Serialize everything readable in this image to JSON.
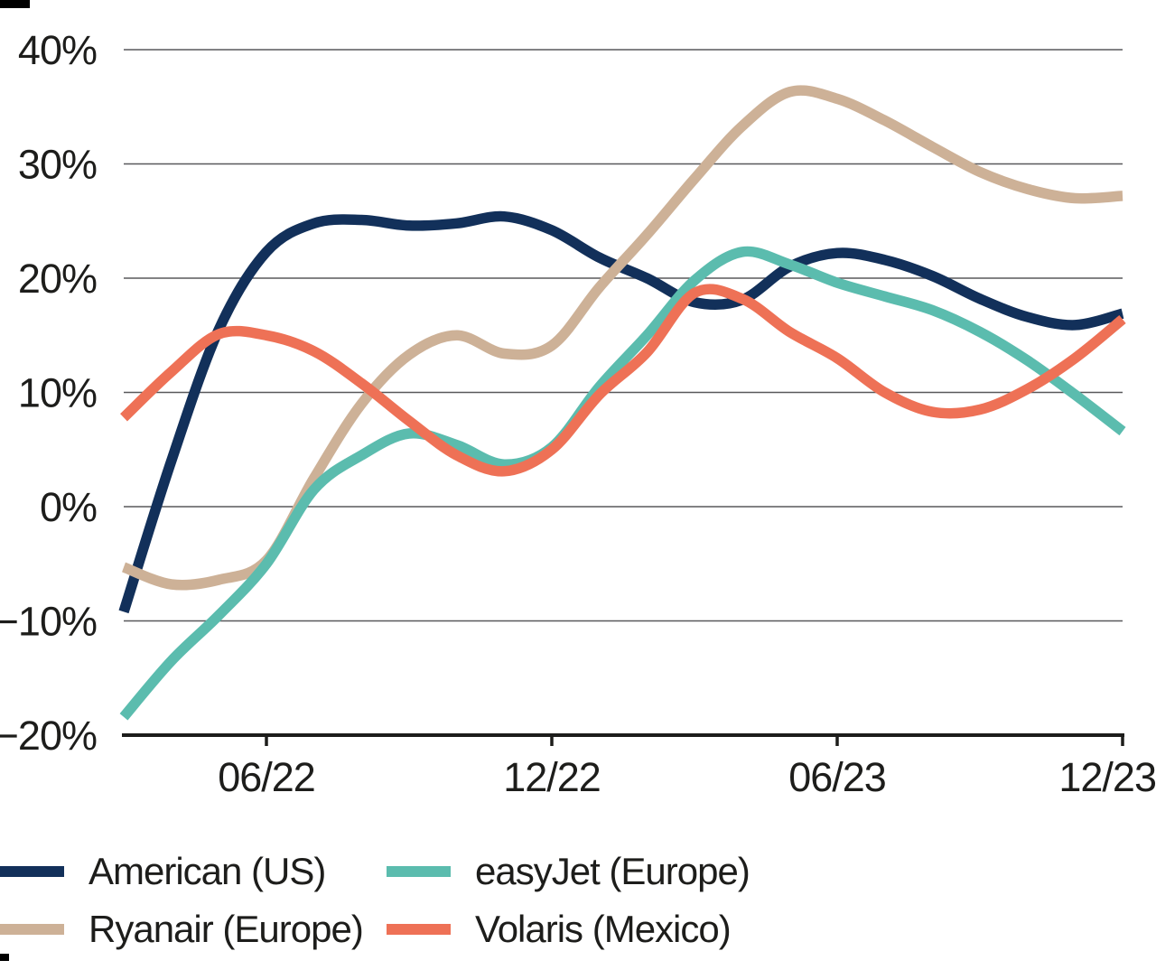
{
  "chart_data": {
    "type": "line",
    "grid": "horizontal",
    "legend_position": "bottom-left",
    "axis_color": "#1d1d1b",
    "grid_color": "#58585b",
    "ylim": [
      -20,
      40
    ],
    "y_ticks": [
      {
        "value": 40,
        "label": "40%"
      },
      {
        "value": 30,
        "label": "30%"
      },
      {
        "value": 20,
        "label": "20%"
      },
      {
        "value": 10,
        "label": "10%"
      },
      {
        "value": 0,
        "label": "0%"
      },
      {
        "value": -10,
        "label": "−10%"
      },
      {
        "value": -20,
        "label": "−20%"
      }
    ],
    "x_ticks": [
      {
        "index": 3,
        "label": "06/22"
      },
      {
        "index": 9,
        "label": "12/22"
      },
      {
        "index": 15,
        "label": "06/23"
      },
      {
        "index": 21,
        "label": "12/23"
      }
    ],
    "x_values": [
      "03/22",
      "04/22",
      "05/22",
      "06/22",
      "07/22",
      "08/22",
      "09/22",
      "10/22",
      "11/22",
      "12/22",
      "01/23",
      "02/23",
      "03/23",
      "04/23",
      "05/23",
      "06/23",
      "07/23",
      "08/23",
      "09/23",
      "10/23",
      "11/23",
      "12/23"
    ],
    "series": [
      {
        "name": "American (US)",
        "color": "#12305a",
        "values": [
          -9.2,
          4.0,
          15.5,
          22.3,
          24.8,
          25.1,
          24.6,
          24.8,
          25.4,
          24.2,
          21.8,
          20.0,
          17.9,
          18.1,
          21.0,
          22.2,
          21.6,
          20.2,
          18.2,
          16.6,
          15.9,
          16.9
        ]
      },
      {
        "name": "Ryanair (Europe)",
        "color": "#cdb197",
        "values": [
          -5.3,
          -6.8,
          -6.4,
          -4.7,
          2.5,
          9.0,
          13.3,
          15.0,
          13.4,
          14.1,
          19.2,
          23.8,
          28.7,
          33.3,
          36.3,
          35.7,
          33.8,
          31.5,
          29.3,
          27.8,
          27.0,
          27.2
        ]
      },
      {
        "name": "easyJet (Europe)",
        "color": "#5bbcae",
        "values": [
          -18.4,
          -13.5,
          -9.5,
          -5.0,
          1.5,
          4.5,
          6.4,
          5.4,
          3.7,
          5.2,
          10.5,
          15.0,
          19.8,
          22.3,
          21.2,
          19.6,
          18.4,
          17.2,
          15.3,
          12.8,
          9.8,
          6.6
        ]
      },
      {
        "name": "Volaris (Mexico)",
        "color": "#ee7156",
        "values": [
          7.8,
          11.8,
          15.1,
          15.0,
          13.6,
          10.8,
          7.5,
          4.5,
          3.1,
          5.0,
          9.8,
          13.5,
          18.7,
          18.2,
          15.3,
          13.0,
          10.0,
          8.3,
          8.5,
          10.3,
          13.0,
          16.4
        ]
      }
    ]
  }
}
